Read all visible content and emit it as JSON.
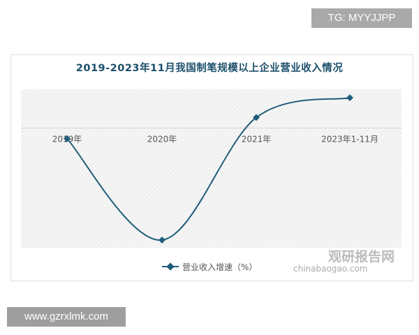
{
  "overlay_tag": "TG: MYYJJPP",
  "site_label": "www.gzrxlmk.com",
  "watermark": {
    "brand": "观研报告网",
    "sub": "chinabaogao.com"
  },
  "chart_data": {
    "type": "line",
    "title": "2019-2023年11月我国制笔规模以上企业营业收入情况",
    "categories": [
      "2019年",
      "2020年",
      "2021年",
      "2023年1-11月"
    ],
    "series": [
      {
        "name": "营业收入增速（%）",
        "values": [
          -1.5,
          -15.9,
          1.5,
          4.3
        ],
        "color": "#1f5d7a"
      }
    ],
    "ylim": [
      -17,
      5.5
    ],
    "grid": false,
    "smooth": true,
    "legend": "bottom"
  }
}
